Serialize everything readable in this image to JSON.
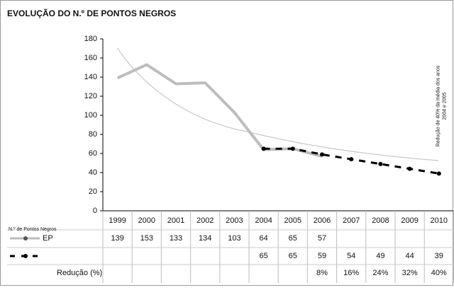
{
  "chart_data": {
    "type": "line",
    "title": "EVOLUÇÃO DO N.º DE PONTOS NEGROS",
    "categories": [
      "1999",
      "2000",
      "2001",
      "2002",
      "2003",
      "2004",
      "2005",
      "2006",
      "2007",
      "2008",
      "2009",
      "2010"
    ],
    "series": [
      {
        "name": "EP",
        "color": "#bdbdbd",
        "line_style": "solid",
        "values": [
          139,
          153,
          133,
          134,
          103,
          64,
          65,
          57,
          null,
          null,
          null,
          null
        ]
      },
      {
        "color": "#000000",
        "line_style": "dashed",
        "markers": true,
        "values": [
          null,
          null,
          null,
          null,
          null,
          65,
          65,
          59,
          54,
          49,
          44,
          39
        ]
      }
    ],
    "table_label": "N.º de Pontos Negros",
    "reduction": {
      "label": "Redução (%)",
      "values": [
        null,
        null,
        null,
        null,
        null,
        null,
        null,
        8,
        16,
        24,
        32,
        40
      ],
      "value_labels": [
        null,
        null,
        null,
        null,
        null,
        null,
        null,
        "8%",
        "16%",
        "24%",
        "32%",
        "40%"
      ]
    },
    "annotation": [
      "Redução de 40% da média dos anos",
      "2004 e 2005"
    ],
    "ylim": [
      0,
      180
    ],
    "yticks": [
      0,
      20,
      40,
      60,
      80,
      100,
      120,
      140,
      160,
      180
    ],
    "grid": false
  }
}
